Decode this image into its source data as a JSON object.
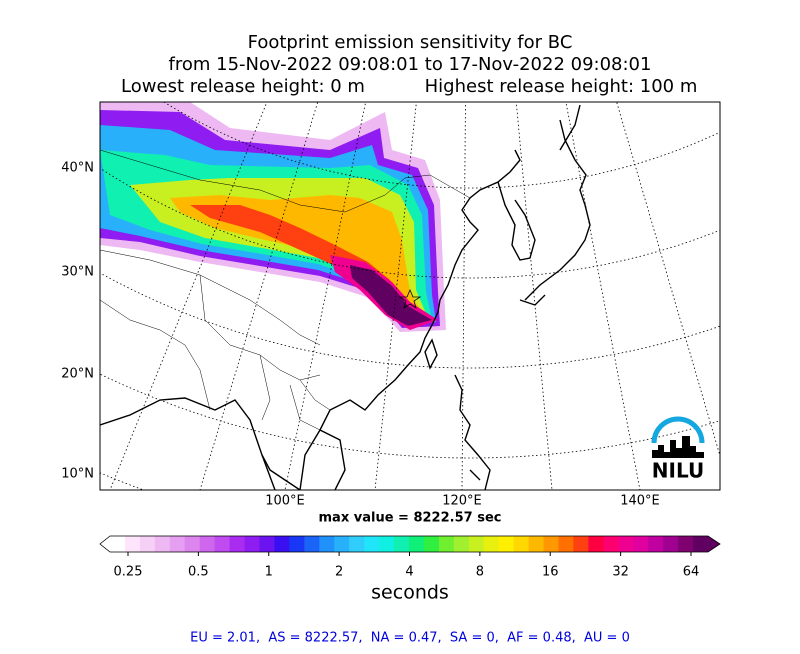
{
  "title_lines": [
    "Footprint emission sensitivity for BC",
    "from 15-Nov-2022 09:08:01 to 17-Nov-2022 09:08:01"
  ],
  "release": {
    "lowest": "Lowest release height: 0 m",
    "highest": "Highest release height: 100 m"
  },
  "lat_labels": [
    "40°N",
    "30°N",
    "20°N",
    "10°N"
  ],
  "lon_labels": [
    "100°E",
    "120°E",
    "140°E"
  ],
  "max_value": "max value = 8222.57 sec",
  "colorbar": {
    "tick_labels": [
      "0.25",
      "0.5",
      "1",
      "2",
      "4",
      "8",
      "16",
      "32",
      "64"
    ],
    "label": "seconds",
    "colors": [
      "#ffffff",
      "#fde6fb",
      "#f6d0f7",
      "#eeb8f2",
      "#e59ff0",
      "#dc85ee",
      "#cf66ee",
      "#c04bf0",
      "#aa2cf0",
      "#8f1cf0",
      "#6b14f0",
      "#3a10f0",
      "#1838f5",
      "#1c64f8",
      "#2090fa",
      "#28b0fb",
      "#30ccfb",
      "#20e4f7",
      "#10f0e0",
      "#10f0b0",
      "#10ef78",
      "#30ef40",
      "#70ef30",
      "#a0ef30",
      "#c8f020",
      "#e8f010",
      "#fff000",
      "#ffd800",
      "#ffb800",
      "#ff9800",
      "#ff7000",
      "#ff4010",
      "#ff0040",
      "#ff0070",
      "#f00090",
      "#e000a0",
      "#c000a0",
      "#a00090",
      "#800070",
      "#600060"
    ]
  },
  "logo": "NILU",
  "footer": "EU = 2.01,  AS = 8222.57,  NA = 0.47,  SA = 0,  AF = 0.48,  AU = 0"
}
